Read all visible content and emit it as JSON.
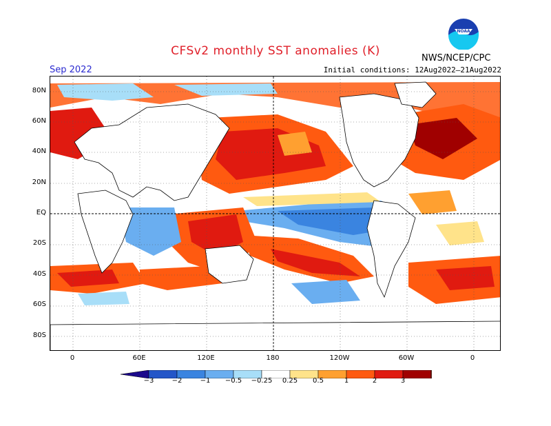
{
  "header": {
    "title": "CFSv2 monthly SST anomalies (K)",
    "month": "Sep 2022",
    "initial_conditions": "Initial conditions: 12Aug2022–21Aug2022",
    "agency": "NWS/NCEP/CPC",
    "logo_text": "NOAA"
  },
  "axes": {
    "lat_labels": [
      "80N",
      "60N",
      "40N",
      "20N",
      "EQ",
      "20S",
      "40S",
      "60S",
      "80S"
    ],
    "lon_labels": [
      "0",
      "60E",
      "120E",
      "180",
      "120W",
      "60W",
      "0"
    ]
  },
  "colorbar": {
    "labels": [
      "−3",
      "−2",
      "−1",
      "−0.5",
      "−0.25",
      "0.25",
      "0.5",
      "1",
      "2",
      "3"
    ],
    "colors": [
      "#1c0a8c",
      "#2456c8",
      "#3a84e0",
      "#6aaef0",
      "#a8def8",
      "#ffffff",
      "#ffe38a",
      "#ffa030",
      "#ff5a10",
      "#e01a10",
      "#a00000",
      "#7a4030"
    ]
  },
  "map": {
    "description_colors": {
      "warm": "#ff5a10",
      "hot": "#e01a10",
      "very_hot": "#a00000",
      "mild_warm": "#ffa030",
      "slight_warm": "#ffe38a",
      "cool": "#6aaef0",
      "cold": "#3a84e0",
      "slight_cool": "#a8def8"
    }
  }
}
